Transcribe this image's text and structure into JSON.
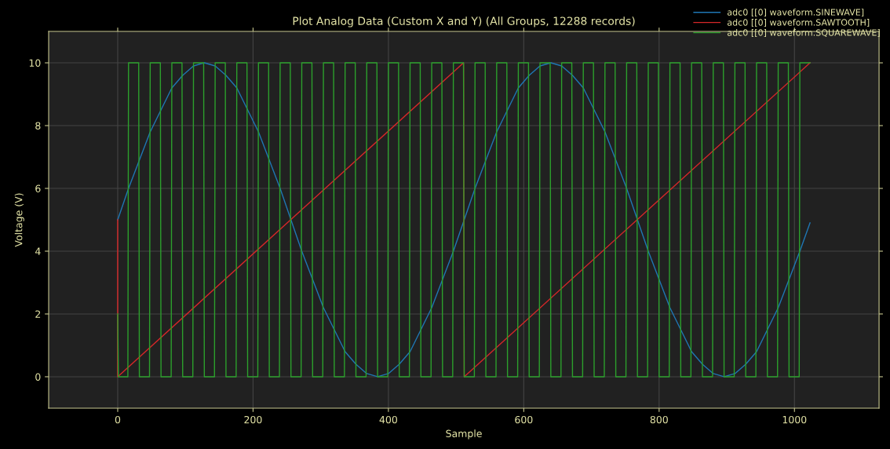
{
  "chart_data": {
    "type": "line",
    "title": "Plot Analog Data (Custom X and Y) (All Groups, 12288 records)",
    "xlabel": "Sample",
    "ylabel": "Voltage (V)",
    "xlim": [
      -102,
      1125
    ],
    "ylim": [
      -1,
      11
    ],
    "xticks": [
      0,
      200,
      400,
      600,
      800,
      1000
    ],
    "yticks": [
      0,
      2,
      4,
      6,
      8,
      10
    ],
    "grid": true,
    "legend": "top right",
    "line_style": "solid",
    "marker": "none",
    "series": [
      {
        "name": "adc0 [[0] waveform.SINEWAVE]",
        "color": "#1f77b4",
        "x": [
          0,
          16,
          32,
          48,
          64,
          80,
          96,
          112,
          128,
          144,
          160,
          176,
          192,
          208,
          224,
          240,
          256,
          272,
          288,
          304,
          320,
          336,
          352,
          368,
          384,
          400,
          416,
          432,
          448,
          464,
          480,
          496,
          512,
          528,
          544,
          560,
          576,
          592,
          608,
          624,
          640,
          656,
          672,
          688,
          704,
          720,
          736,
          752,
          768,
          784,
          800,
          816,
          832,
          848,
          864,
          880,
          896,
          912,
          928,
          944,
          960,
          976,
          992,
          1008,
          1023
        ],
        "values": [
          5,
          6,
          6.9,
          7.8,
          8.5,
          9.2,
          9.6,
          9.9,
          10,
          9.9,
          9.6,
          9.2,
          8.5,
          7.8,
          6.9,
          6,
          5,
          4,
          3.1,
          2.2,
          1.5,
          0.8,
          0.4,
          0.1,
          0,
          0.1,
          0.4,
          0.8,
          1.5,
          2.2,
          3.1,
          4,
          5,
          6,
          6.9,
          7.8,
          8.5,
          9.2,
          9.6,
          9.9,
          10,
          9.9,
          9.6,
          9.2,
          8.5,
          7.8,
          6.9,
          6,
          5,
          4,
          3.1,
          2.2,
          1.5,
          0.8,
          0.4,
          0.1,
          0,
          0.1,
          0.4,
          0.8,
          1.5,
          2.2,
          3.1,
          4,
          4.9
        ]
      },
      {
        "name": "adc0 [[0] waveform.SAWTOOTH]",
        "color": "#d62728",
        "x": [
          0,
          0,
          511,
          512,
          1023
        ],
        "values": [
          5,
          0,
          10,
          0,
          10
        ]
      },
      {
        "name": "adc0 [[0] waveform.SQUAREWAVE]",
        "color": "#2ca02c",
        "x": [
          0,
          1,
          15,
          16,
          31,
          32,
          47,
          48,
          63,
          64,
          79,
          80,
          95,
          96,
          111,
          112,
          127,
          128,
          143,
          144,
          159,
          160,
          175,
          176,
          191,
          192,
          207,
          208,
          223,
          224,
          239,
          240,
          255,
          256,
          271,
          272,
          287,
          288,
          303,
          304,
          319,
          320,
          335,
          336,
          351,
          352,
          367,
          368,
          383,
          384,
          399,
          400,
          415,
          416,
          431,
          432,
          447,
          448,
          463,
          464,
          479,
          480,
          495,
          496,
          511,
          512,
          527,
          528,
          543,
          544,
          559,
          560,
          575,
          576,
          591,
          592,
          607,
          608,
          623,
          624,
          639,
          640,
          655,
          656,
          671,
          672,
          687,
          688,
          703,
          704,
          719,
          720,
          735,
          736,
          751,
          752,
          767,
          768,
          783,
          784,
          799,
          800,
          815,
          816,
          831,
          832,
          847,
          848,
          863,
          864,
          879,
          880,
          895,
          896,
          911,
          912,
          927,
          928,
          943,
          944,
          959,
          960,
          975,
          976,
          991,
          992,
          1007,
          1008,
          1023
        ],
        "values": [
          2,
          0,
          0,
          10,
          10,
          0,
          0,
          10,
          10,
          0,
          0,
          10,
          10,
          0,
          0,
          10,
          10,
          0,
          0,
          10,
          10,
          0,
          0,
          10,
          10,
          0,
          0,
          10,
          10,
          0,
          0,
          10,
          10,
          0,
          0,
          10,
          10,
          0,
          0,
          10,
          10,
          0,
          0,
          10,
          10,
          0,
          0,
          10,
          10,
          0,
          0,
          10,
          10,
          0,
          0,
          10,
          10,
          0,
          0,
          10,
          10,
          0,
          0,
          10,
          10,
          0,
          0,
          10,
          10,
          0,
          0,
          10,
          10,
          0,
          0,
          10,
          10,
          0,
          0,
          10,
          10,
          0,
          0,
          10,
          10,
          0,
          0,
          10,
          10,
          0,
          0,
          10,
          10,
          0,
          0,
          10,
          10,
          0,
          0,
          10,
          10,
          0,
          0,
          10,
          10,
          0,
          0,
          10,
          10,
          0,
          0,
          10,
          10,
          0,
          0,
          10,
          10,
          0,
          0,
          10,
          10,
          0,
          0,
          10,
          10,
          0,
          0,
          10,
          10
        ]
      }
    ]
  }
}
